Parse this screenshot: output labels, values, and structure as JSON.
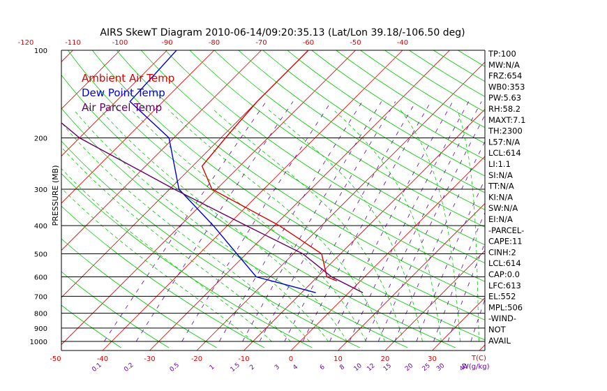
{
  "chart_data": {
    "type": "line",
    "title": "AIRS SkewT Diagram 2010-06-14/09:20:35.13 (Lat/Lon 39.18/-106.50 deg)",
    "ylabel": "PRESSURE (MB)",
    "top_axis_ticks": [
      "-120",
      "-110",
      "-100",
      "-90",
      "-80",
      "-70",
      "-60",
      "-50",
      "-40"
    ],
    "bottom_temp_ticks": [
      "-50",
      "-40",
      "-30",
      "-20",
      "-10",
      "0",
      "10",
      "20",
      "30"
    ],
    "bottom_temp_unit": "T(C)",
    "mixing_ratio_ticks": [
      "0.1",
      "0.2",
      "0.5",
      "1",
      "1.5",
      "2",
      "3",
      "4",
      "6",
      "8",
      "10",
      "12",
      "15",
      "20",
      "25",
      "30",
      "40"
    ],
    "mixing_ratio_unit": "W(g/kg)",
    "pressure_levels": [
      {
        "label": "100",
        "p": 100
      },
      {
        "label": "200",
        "p": 200
      },
      {
        "label": "300",
        "p": 300
      },
      {
        "label": "400",
        "p": 400
      },
      {
        "label": "500",
        "p": 500
      },
      {
        "label": "600",
        "p": 600
      },
      {
        "label": "700",
        "p": 700
      },
      {
        "label": "800",
        "p": 800
      },
      {
        "label": "900",
        "p": 900
      },
      {
        "label": "1000",
        "p": 1000
      }
    ],
    "legend_position": "top-left",
    "series": [
      {
        "name": "Ambient Air Temp",
        "color": "#dd0000",
        "points": [
          {
            "p": 100,
            "t": -60
          },
          {
            "p": 150,
            "t": -60
          },
          {
            "p": 200,
            "t": -59
          },
          {
            "p": 250,
            "t": -58
          },
          {
            "p": 300,
            "t": -51
          },
          {
            "p": 400,
            "t": -29
          },
          {
            "p": 500,
            "t": -14
          },
          {
            "p": 600,
            "t": -8
          },
          {
            "p": 620,
            "t": -5
          }
        ]
      },
      {
        "name": "Dew Point Temp",
        "color": "#0000dd",
        "points": [
          {
            "p": 100,
            "t": -88
          },
          {
            "p": 150,
            "t": -87
          },
          {
            "p": 200,
            "t": -71
          },
          {
            "p": 300,
            "t": -58
          },
          {
            "p": 400,
            "t": -43
          },
          {
            "p": 500,
            "t": -32
          },
          {
            "p": 600,
            "t": -23
          },
          {
            "p": 680,
            "t": -7
          }
        ]
      },
      {
        "name": "Air Parcel Temp",
        "color": "#660066",
        "points": [
          {
            "p": 100,
            "t": -120
          },
          {
            "p": 150,
            "t": -107
          },
          {
            "p": 200,
            "t": -90
          },
          {
            "p": 300,
            "t": -59
          },
          {
            "p": 400,
            "t": -36
          },
          {
            "p": 500,
            "t": -18
          },
          {
            "p": 600,
            "t": -7
          },
          {
            "p": 680,
            "t": 3
          }
        ]
      }
    ],
    "info_labels": [
      "TP:100",
      "MW:N/A",
      "FRZ:654",
      "WB0:353",
      "PW:5.63",
      "RH:58.2",
      "MAXT:7.1",
      "TH:2300",
      "L57:N/A",
      "LCL:614",
      "LI:1.1",
      "SI:N/A",
      "TT:N/A",
      "KI:N/A",
      "SW:N/A",
      "EI:N/A",
      "-PARCEL-",
      "CAPE:11",
      "CINH:2",
      "LCL:614",
      "CAP:0.0",
      "LFC:613",
      "EL:552",
      "MPL:506",
      "-WIND-",
      "NOT",
      "AVAIL"
    ],
    "colors": {
      "isotherm": "#dd0000",
      "dry_adiabat": "#00cc00",
      "moist_adiabat": "#00cc00",
      "mixing_ratio": "#6600aa",
      "isobar": "#000000",
      "axis_tick_text": "#dd0000",
      "mixing_ratio_text": "#6600aa"
    }
  }
}
